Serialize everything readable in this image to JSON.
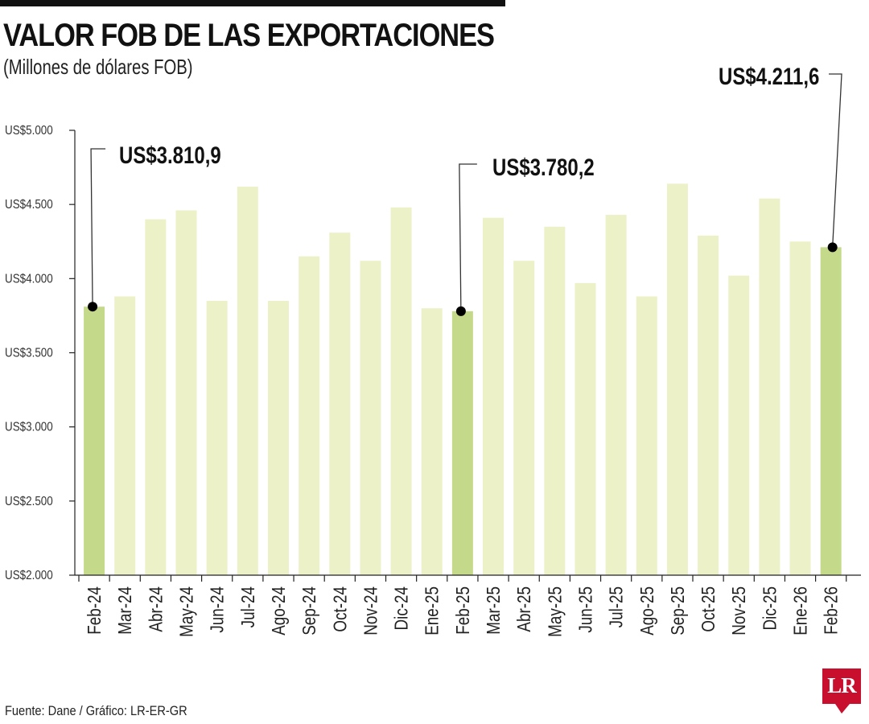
{
  "header": {
    "title": "VALOR FOB DE LAS EXPORTACIONES",
    "subtitle": "(Millones de dólares FOB)"
  },
  "footer": {
    "source": "Fuente: Dane / Gráfico: LR-ER-GR",
    "logo_text": "LR"
  },
  "colors": {
    "bar": "#edf1c8",
    "bar_highlight": "#c5d98a",
    "axis": "#222222",
    "marker": "#000000"
  },
  "chart_data": {
    "type": "bar",
    "title": "VALOR FOB DE LAS EXPORTACIONES",
    "subtitle": "(Millones de dólares FOB)",
    "xlabel": "",
    "ylabel": "",
    "ylim": [
      2000,
      5000
    ],
    "yticks": [
      2000,
      2500,
      3000,
      3500,
      4000,
      4500,
      5000
    ],
    "ytick_labels": [
      "US$2.000",
      "US$2.500",
      "US$3.000",
      "US$3.500",
      "US$4.000",
      "US$4.500",
      "US$5.000"
    ],
    "grid": false,
    "categories": [
      "Feb-24",
      "Mar-24",
      "Abr-24",
      "May-24",
      "Jun-24",
      "Jul-24",
      "Ago-24",
      "Sep-24",
      "Oct-24",
      "Nov-24",
      "Dic-24",
      "Ene-25",
      "Feb-25",
      "Mar-25",
      "Abr-25",
      "May-25",
      "Jun-25",
      "Jul-25",
      "Ago-25",
      "Sep-25",
      "Oct-25",
      "Nov-25",
      "Dic-25",
      "Ene-26",
      "Feb-26"
    ],
    "values": [
      3810.9,
      3880,
      4400,
      4460,
      3850,
      4620,
      3850,
      4150,
      4310,
      4120,
      4480,
      3800,
      3780.2,
      4410,
      4120,
      4350,
      3970,
      4430,
      3880,
      4640,
      4290,
      4020,
      4540,
      4250,
      4211.6
    ],
    "highlighted": [
      "Feb-24",
      "Feb-25",
      "Feb-26"
    ],
    "annotations": [
      {
        "category": "Feb-24",
        "value": 3810.9,
        "label": "US$3.810,9"
      },
      {
        "category": "Feb-25",
        "value": 3780.2,
        "label": "US$3.780,2"
      },
      {
        "category": "Feb-26",
        "value": 4211.6,
        "label": "US$4.211,6"
      }
    ]
  }
}
